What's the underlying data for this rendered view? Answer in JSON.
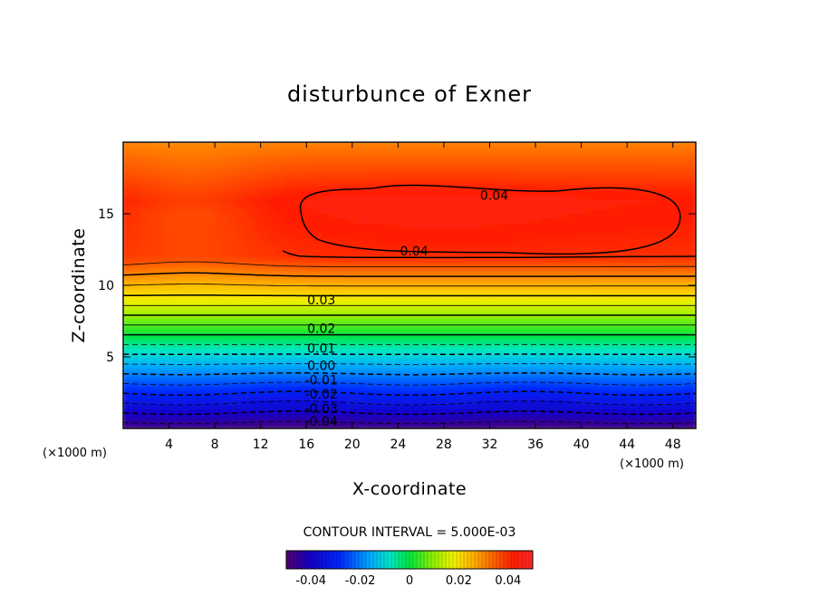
{
  "chart_data": {
    "type": "heatmap",
    "subtype": "filled-contour",
    "title": "disturbunce of Exner",
    "xlabel": "X-coordinate",
    "ylabel": "Z-coordinate",
    "x_unit_left": "(×1000 m)",
    "x_unit_right": "(×1000 m)",
    "xlim": [
      0,
      50
    ],
    "ylim": [
      0,
      20
    ],
    "x_ticks": [
      4,
      8,
      12,
      16,
      20,
      24,
      28,
      32,
      36,
      40,
      44,
      48
    ],
    "y_ticks": [
      5,
      10,
      15
    ],
    "contour_interval_text": "CONTOUR INTERVAL = 5.000E-03",
    "contour_interval": 0.005,
    "value_range": [
      -0.05,
      0.045
    ],
    "colormap": "rainbow (purple-blue-cyan-green-yellow-orange-red)",
    "negative_contours": "dashed",
    "contour_labels": [
      {
        "text": "0.04",
        "x": 32.4,
        "z": 16.3
      },
      {
        "text": "0.04",
        "x": 25.4,
        "z": 12.4
      },
      {
        "text": "0.03",
        "x": 17.3,
        "z": 9.0
      },
      {
        "text": "0.02",
        "x": 17.3,
        "z": 7.0
      },
      {
        "text": "0.01",
        "x": 17.3,
        "z": 5.6
      },
      {
        "text": "0.00",
        "x": 17.3,
        "z": 4.4
      },
      {
        "text": "-0.01",
        "x": 17.3,
        "z": 3.4
      },
      {
        "text": "-0.02",
        "x": 17.3,
        "z": 2.4
      },
      {
        "text": "-0.03",
        "x": 17.3,
        "z": 1.4
      },
      {
        "text": "-0.04",
        "x": 17.3,
        "z": 0.5
      }
    ],
    "colorbar": {
      "tick_labels": [
        "-0.04",
        "-0.02",
        "0",
        "0.02",
        "0.04"
      ],
      "tick_values": [
        -0.04,
        -0.02,
        0,
        0.02,
        0.04
      ],
      "range": [
        -0.05,
        0.05
      ]
    },
    "grid": false
  }
}
